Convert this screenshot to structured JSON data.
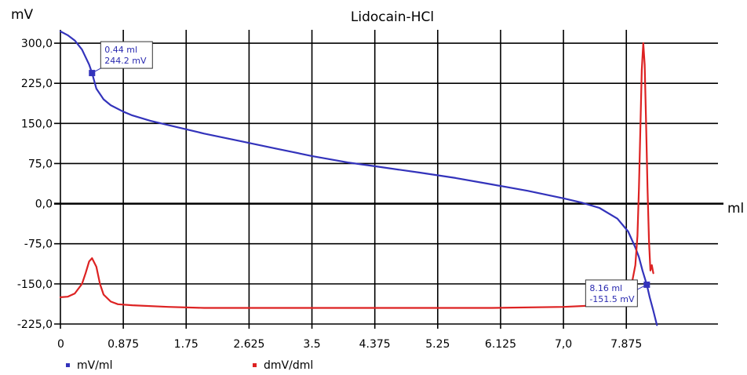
{
  "chart_data": {
    "type": "line",
    "title": "Lidocain-HCl",
    "ylabel": "mV",
    "xlabel": "ml",
    "xlim": [
      0,
      9.15
    ],
    "ylim": [
      -225,
      325
    ],
    "x_ticks": [
      {
        "value": 0,
        "label": "0"
      },
      {
        "value": 0.875,
        "label": "0.875"
      },
      {
        "value": 1.75,
        "label": "1.75"
      },
      {
        "value": 2.625,
        "label": "2.625"
      },
      {
        "value": 3.5,
        "label": "3.5"
      },
      {
        "value": 4.375,
        "label": "4.375"
      },
      {
        "value": 5.25,
        "label": "5.25"
      },
      {
        "value": 6.125,
        "label": "6.125"
      },
      {
        "value": 7.0,
        "label": "7,0"
      },
      {
        "value": 7.875,
        "label": "7.875"
      }
    ],
    "y_ticks": [
      {
        "value": 300,
        "label": "300,0"
      },
      {
        "value": 225,
        "label": "225,0"
      },
      {
        "value": 150,
        "label": "150,0"
      },
      {
        "value": 75,
        "label": "75,0"
      },
      {
        "value": 0,
        "label": "0,0"
      },
      {
        "value": -75,
        "label": "-75,0"
      },
      {
        "value": -150,
        "label": "-150,0"
      },
      {
        "value": -225,
        "label": "-225,0"
      }
    ],
    "grid": true,
    "legend_position": "bottom",
    "series": [
      {
        "name": "mV/ml",
        "color": "#3333bb",
        "x": [
          0,
          0.1,
          0.2,
          0.3,
          0.4,
          0.44,
          0.5,
          0.6,
          0.7,
          0.875,
          1.0,
          1.25,
          1.5,
          1.75,
          2.0,
          2.5,
          3.0,
          3.5,
          4.0,
          4.375,
          5.0,
          5.5,
          6.0,
          6.5,
          7.0,
          7.25,
          7.5,
          7.75,
          7.9,
          8.0,
          8.05,
          8.1,
          8.16,
          8.2,
          8.25,
          8.3
        ],
        "y": [
          322,
          315,
          305,
          288,
          260,
          244.2,
          215,
          195,
          184,
          172,
          165,
          155,
          147,
          139,
          131,
          117,
          103,
          89,
          77,
          70,
          58,
          48,
          36,
          24,
          10,
          2,
          -8,
          -28,
          -52,
          -82,
          -100,
          -125,
          -151.5,
          -175,
          -200,
          -227
        ]
      },
      {
        "name": "dmV/dml",
        "color": "#dd2222",
        "x": [
          0,
          0.1,
          0.2,
          0.3,
          0.35,
          0.4,
          0.44,
          0.5,
          0.55,
          0.6,
          0.7,
          0.8,
          1.0,
          1.5,
          2.0,
          3.0,
          4.0,
          5.0,
          6.0,
          7.0,
          7.5,
          7.75,
          7.85,
          7.95,
          8.0,
          8.03,
          8.05,
          8.07,
          8.09,
          8.11,
          8.13,
          8.15,
          8.17,
          8.19,
          8.21,
          8.23,
          8.25
        ],
        "y": [
          -175,
          -174,
          -168,
          -150,
          -130,
          -108,
          -102,
          -118,
          -150,
          -170,
          -183,
          -188,
          -190,
          -193,
          -195,
          -195,
          -195,
          -195,
          -195,
          -193,
          -190,
          -185,
          -175,
          -150,
          -115,
          -60,
          30,
          140,
          250,
          300,
          260,
          150,
          30,
          -70,
          -125,
          -115,
          -130
        ]
      }
    ],
    "annotations": [
      {
        "x": 0.44,
        "y": 244.2,
        "line1": "0.44 ml",
        "line2": "244.2 mV"
      },
      {
        "x": 8.16,
        "y": -151.5,
        "line1": "8.16 ml",
        "line2": "-151.5 mV"
      }
    ]
  }
}
